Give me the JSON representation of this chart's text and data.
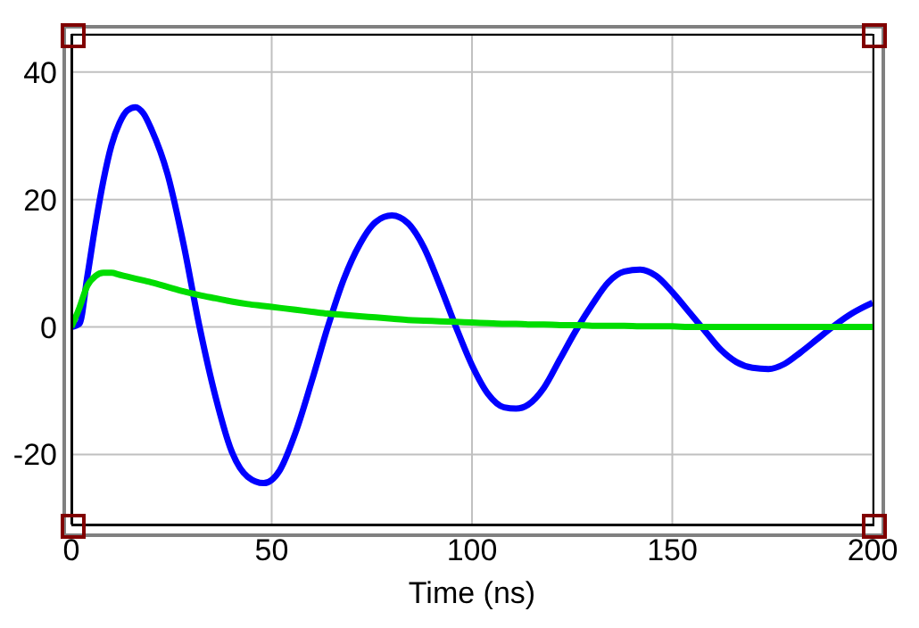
{
  "chart_data": {
    "type": "line",
    "xlabel": "Time (ns)",
    "x": [
      0,
      2,
      4,
      6,
      8,
      10,
      12,
      14,
      16,
      18,
      20,
      24,
      28,
      32,
      36,
      40,
      44,
      48,
      52,
      56,
      60,
      64,
      68,
      72,
      76,
      80,
      84,
      88,
      92,
      96,
      100,
      104,
      108,
      111,
      114,
      118,
      122,
      126,
      130,
      134,
      138,
      142,
      146,
      150,
      154,
      158,
      162,
      166,
      170,
      174,
      178,
      182,
      186,
      190,
      194,
      198,
      200
    ],
    "series": [
      {
        "color": "#0000ff",
        "values": [
          0,
          0.5,
          8,
          16,
          23,
          28.5,
          32,
          34,
          34.5,
          33.5,
          31,
          24,
          13,
          0,
          -11,
          -19.5,
          -23.5,
          -24.5,
          -22.5,
          -16.5,
          -8.5,
          0,
          7.5,
          13,
          16.5,
          17.5,
          16.3,
          12.5,
          6.5,
          0,
          -6,
          -10.5,
          -12.6,
          -12.8,
          -12.2,
          -9.5,
          -5,
          -0.5,
          3.5,
          7,
          8.7,
          9,
          8,
          5.5,
          2.5,
          -0.5,
          -3.5,
          -5.5,
          -6.4,
          -6.6,
          -5.8,
          -4,
          -2,
          0,
          1.8,
          3.2,
          3.8
        ]
      },
      {
        "color": "#00dd00",
        "values": [
          0,
          3,
          6.5,
          8,
          8.5,
          8.5,
          8.2,
          7.9,
          7.6,
          7.3,
          7,
          6.3,
          5.6,
          5,
          4.5,
          4,
          3.6,
          3.3,
          3,
          2.7,
          2.4,
          2.1,
          1.9,
          1.7,
          1.5,
          1.3,
          1.1,
          1,
          0.9,
          0.8,
          0.7,
          0.6,
          0.5,
          0.5,
          0.4,
          0.4,
          0.3,
          0.3,
          0.2,
          0.2,
          0.2,
          0.1,
          0.1,
          0.1,
          0,
          0,
          0,
          0,
          0,
          0,
          0,
          0,
          0,
          0,
          0,
          0,
          0
        ]
      }
    ],
    "xlim": [
      0,
      200
    ],
    "xticks": [
      0,
      50,
      100,
      150,
      200
    ],
    "ylim": [
      -31,
      46
    ],
    "yticks": [
      -20,
      0,
      20,
      40
    ],
    "grid": true,
    "marker": "none",
    "line_style": "solid"
  }
}
